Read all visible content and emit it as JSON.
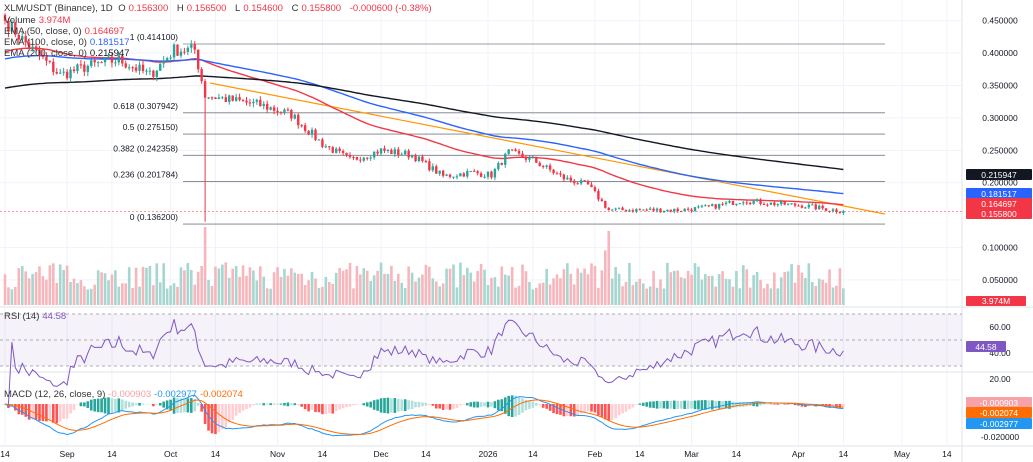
{
  "header": {
    "symbol": "XLM/USDT (Binance), 1D",
    "o_label": "O",
    "o": "0.156300",
    "h_label": "H",
    "h": "0.156500",
    "l_label": "L",
    "l": "0.154600",
    "c_label": "C",
    "c": "0.155800",
    "change": "-0.000600 (-0.38%)"
  },
  "indicators": {
    "volume": {
      "label": "Volume",
      "value": "3.974M"
    },
    "ema50": {
      "label": "EMA (50, close, 0)",
      "value": "0.164697",
      "color": "#f23645"
    },
    "ema100": {
      "label": "EMA (100, close, 0)",
      "value": "0.181517",
      "color": "#2962ff"
    },
    "ema200": {
      "label": "EMA (200, close, 0)",
      "value": "0.215947",
      "color": "#131722"
    },
    "rsi": {
      "label": "RSI (14)",
      "value": "44.58",
      "color": "#7e57c2"
    },
    "macd": {
      "label": "MACD (12, 26, close, 9)",
      "hist": "-0.000903",
      "macd": "-0.002977",
      "signal": "-0.002074"
    }
  },
  "colors": {
    "up": "#26a69a",
    "down": "#f23645",
    "trendline": "#ff9800"
  },
  "chart_data": {
    "type": "candlestick",
    "symbol": "XLM/USDT",
    "interval": "1D",
    "y_axis_ticks": [
      "0.450000",
      "0.400000",
      "0.350000",
      "0.300000",
      "0.250000",
      "0.200000",
      "0.100000",
      "0.050000"
    ],
    "y_axis_values": [
      0.45,
      0.4,
      0.35,
      0.3,
      0.25,
      0.2,
      0.1,
      0.05
    ],
    "x_axis_ticks": [
      "14",
      "Sep",
      "14",
      "Oct",
      "14",
      "Nov",
      "14",
      "Dec",
      "14",
      "2026",
      "14",
      "Feb",
      "14",
      "Mar",
      "14",
      "Apr",
      "14",
      "May",
      "14"
    ],
    "x_axis_dates": [
      "2025-08-14",
      "2025-09-01",
      "2025-09-14",
      "2025-10-01",
      "2025-10-14",
      "2025-11-01",
      "2025-11-14",
      "2025-12-01",
      "2025-12-14",
      "2026-01-01",
      "2026-01-14",
      "2026-02-01",
      "2026-02-14",
      "2026-03-01",
      "2026-03-14",
      "2026-04-01",
      "2026-04-14",
      "2026-05-01",
      "2026-05-14"
    ],
    "approx_closes": [
      [
        "2025-08-14",
        0.45
      ],
      [
        "2025-08-21",
        0.41
      ],
      [
        "2025-08-30",
        0.366
      ],
      [
        "2025-09-07",
        0.38
      ],
      [
        "2025-09-16",
        0.39
      ],
      [
        "2025-09-25",
        0.366
      ],
      [
        "2025-10-02",
        0.405
      ],
      [
        "2025-10-08",
        0.405
      ],
      [
        "2025-10-11",
        0.335
      ],
      [
        "2025-10-18",
        0.328
      ],
      [
        "2025-10-27",
        0.32
      ],
      [
        "2025-11-05",
        0.305
      ],
      [
        "2025-11-14",
        0.26
      ],
      [
        "2025-11-22",
        0.235
      ],
      [
        "2025-12-01",
        0.25
      ],
      [
        "2025-12-10",
        0.243
      ],
      [
        "2025-12-19",
        0.21
      ],
      [
        "2025-12-27",
        0.216
      ],
      [
        "2026-01-02",
        0.212
      ],
      [
        "2026-01-07",
        0.247
      ],
      [
        "2026-01-14",
        0.235
      ],
      [
        "2026-01-23",
        0.207
      ],
      [
        "2026-01-30",
        0.196
      ],
      [
        "2026-02-05",
        0.158
      ],
      [
        "2026-02-15",
        0.158
      ],
      [
        "2026-02-26",
        0.158
      ],
      [
        "2026-03-07",
        0.163
      ],
      [
        "2026-03-16",
        0.173
      ],
      [
        "2026-03-24",
        0.168
      ],
      [
        "2026-04-02",
        0.165
      ],
      [
        "2026-04-14",
        0.1558
      ]
    ],
    "fib_levels": [
      {
        "label": "1 (0.414100)",
        "value": 0.4141
      },
      {
        "label": "0.618 (0.307942)",
        "value": 0.307942
      },
      {
        "label": "0.5 (0.275150)",
        "value": 0.27515
      },
      {
        "label": "0.382 (0.242358)",
        "value": 0.242358
      },
      {
        "label": "0.236 (0.201784)",
        "value": 0.201784
      },
      {
        "label": "0 (0.136200)",
        "value": 0.1362
      }
    ],
    "last_price": {
      "value": 0.1558,
      "label": "0.155800"
    },
    "price_tags": [
      {
        "label": "0.215947",
        "color": "#131722"
      },
      {
        "label": "0.181517",
        "color": "#2962ff"
      },
      {
        "label": "0.164697",
        "color": "#f23645"
      },
      {
        "label": "0.155800",
        "color": "#f23645"
      }
    ],
    "volume_tag": "3.974M",
    "rsi_axis": [
      "60.00",
      "40.00",
      "20.00"
    ],
    "rsi_tag": "44.58",
    "rsi_band": [
      30,
      70
    ],
    "macd_axis": [
      "-0.020000"
    ],
    "macd_tags": [
      {
        "label": "-0.000903",
        "color": "#f7a1a8"
      },
      {
        "label": "-0.002074",
        "color": "#ff6d00"
      },
      {
        "label": "-0.002977",
        "color": "#2196f3"
      }
    ]
  }
}
